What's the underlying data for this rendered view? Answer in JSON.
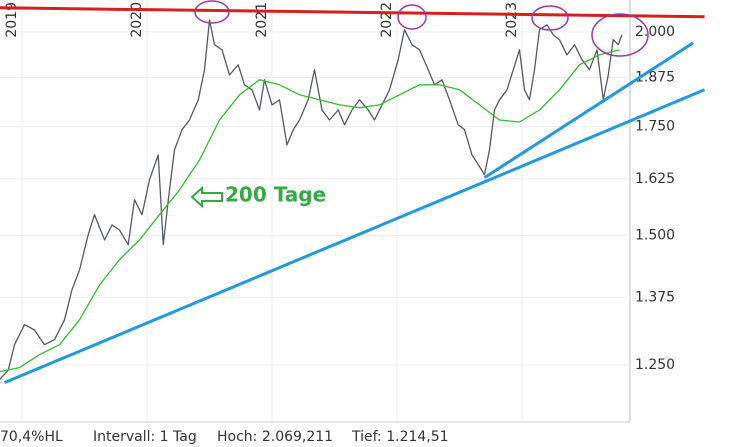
{
  "chart_data": {
    "type": "line",
    "log_scale": true,
    "grid": true,
    "xlim": [
      2018.824,
      2023.864
    ],
    "xticks": [
      2019,
      2020,
      2021,
      2022,
      2023
    ],
    "ylim": [
      1153,
      2092
    ],
    "yticks": [
      {
        "value": 1250,
        "label": "1.250"
      },
      {
        "value": 1375,
        "label": "1.375"
      },
      {
        "value": 1500,
        "label": "1.500"
      },
      {
        "value": 1625,
        "label": "1.625"
      },
      {
        "value": 1750,
        "label": "1.750"
      },
      {
        "value": 1875,
        "label": "1.875"
      },
      {
        "value": 2000,
        "label": "2.000"
      }
    ],
    "series": [
      {
        "color": "#555a60",
        "x": [
          2018.82,
          2018.89,
          2018.94,
          2019.02,
          2019.1,
          2019.18,
          2019.26,
          2019.34,
          2019.4,
          2019.46,
          2019.53,
          2019.58,
          2019.66,
          2019.72,
          2019.78,
          2019.85,
          2019.9,
          2019.96,
          2020.02,
          2020.09,
          2020.13,
          2020.17,
          2020.22,
          2020.28,
          2020.34,
          2020.41,
          2020.46,
          2020.5,
          2020.54,
          2020.6,
          2020.66,
          2020.73,
          2020.78,
          2020.84,
          2020.9,
          2020.94,
          2021.0,
          2021.06,
          2021.12,
          2021.17,
          2021.22,
          2021.29,
          2021.34,
          2021.4,
          2021.46,
          2021.53,
          2021.58,
          2021.64,
          2021.7,
          2021.77,
          2021.82,
          2021.88,
          2021.94,
          2022.01,
          2022.06,
          2022.12,
          2022.18,
          2022.25,
          2022.3,
          2022.36,
          2022.42,
          2022.49,
          2022.54,
          2022.6,
          2022.65,
          2022.7,
          2022.74,
          2022.78,
          2022.82,
          2022.88,
          2022.93,
          2022.98,
          2023.02,
          2023.06,
          2023.1,
          2023.14,
          2023.2,
          2023.25,
          2023.3,
          2023.36,
          2023.42,
          2023.48,
          2023.54,
          2023.6,
          2023.65,
          2023.69,
          2023.73,
          2023.77,
          2023.8
        ],
        "values": [
          1224,
          1241,
          1286,
          1323,
          1313,
          1286,
          1295,
          1332,
          1390,
          1429,
          1502,
          1545,
          1491,
          1523,
          1512,
          1481,
          1578,
          1545,
          1623,
          1681,
          1481,
          1578,
          1693,
          1742,
          1766,
          1817,
          1896,
          2034,
          1964,
          1950,
          1882,
          1909,
          1856,
          1843,
          1791,
          1869,
          1804,
          1817,
          1705,
          1742,
          1766,
          1817,
          1896,
          1791,
          1766,
          1791,
          1754,
          1791,
          1817,
          1791,
          1766,
          1804,
          1843,
          1923,
          2006,
          1964,
          1950,
          1896,
          1856,
          1869,
          1817,
          1754,
          1742,
          1681,
          1658,
          1635,
          1693,
          1791,
          1817,
          1843,
          1896,
          1950,
          1843,
          1817,
          1896,
          2006,
          2020,
          1992,
          1978,
          1936,
          1964,
          1923,
          1896,
          1950,
          1817,
          1882,
          1978,
          1964,
          1992
        ]
      },
      {
        "name": "200 Tage",
        "color": "#33bb33",
        "x": [
          2018.82,
          2018.98,
          2019.14,
          2019.3,
          2019.46,
          2019.62,
          2019.78,
          2019.94,
          2020.1,
          2020.26,
          2020.42,
          2020.58,
          2020.74,
          2020.9,
          2021.06,
          2021.22,
          2021.38,
          2021.54,
          2021.7,
          2021.86,
          2022.02,
          2022.18,
          2022.34,
          2022.5,
          2022.66,
          2022.82,
          2022.98,
          2023.14,
          2023.3,
          2023.46,
          2023.62,
          2023.78
        ],
        "values": [
          1238,
          1245,
          1268,
          1286,
          1332,
          1399,
          1450,
          1491,
          1545,
          1600,
          1669,
          1766,
          1830,
          1869,
          1856,
          1830,
          1817,
          1804,
          1797,
          1804,
          1830,
          1856,
          1856,
          1843,
          1804,
          1766,
          1761,
          1791,
          1843,
          1909,
          1936,
          1950
        ]
      }
    ],
    "trendlines": [
      {
        "color": "#d62020",
        "x": [
          2018.82,
          2024.46
        ],
        "values": [
          2069,
          2043
        ]
      },
      {
        "color": "#2299dd",
        "x": [
          2018.86,
          2024.46
        ],
        "values": [
          1219,
          1843
        ]
      },
      {
        "color": "#2299dd",
        "x": [
          2022.7,
          2024.37
        ],
        "values": [
          1628,
          1969
        ]
      }
    ],
    "footer": [
      "70,4%HL",
      "Intervall: 1 Tag",
      "Hoch: 2.069,211",
      "Tief: 1.214,51"
    ]
  }
}
